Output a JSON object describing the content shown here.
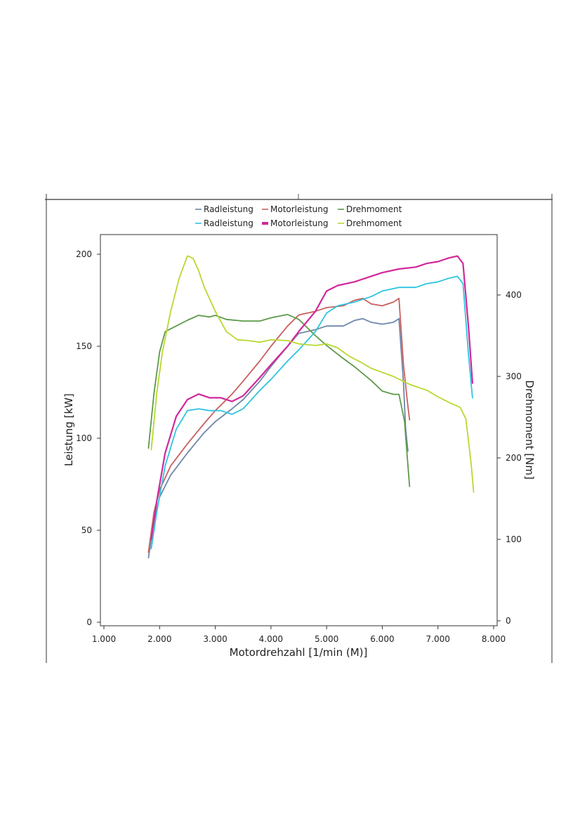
{
  "chart_data": {
    "type": "line",
    "xlabel": "Motordrehzahl [1/min (M)]",
    "ylabel_left": "Leistung [kW]",
    "ylabel_right": "Drehmoment [Nm]",
    "xlim": [
      1000,
      8000
    ],
    "ylim_left": [
      0,
      200
    ],
    "ylim_right": [
      0,
      460
    ],
    "x_ticks": [
      1000,
      2000,
      3000,
      4000,
      5000,
      6000,
      7000,
      8000
    ],
    "x_tick_labels": [
      "1.000",
      "2.000",
      "3.000",
      "4.000",
      "5.000",
      "6.000",
      "7.000",
      "8.000"
    ],
    "y_left_ticks": [
      0,
      50,
      100,
      150,
      200
    ],
    "y_left_tick_labels": [
      "0",
      "50",
      "100",
      "150",
      "200"
    ],
    "y_right_ticks": [
      0,
      100,
      200,
      300,
      400
    ],
    "y_right_tick_labels": [
      "0",
      "100",
      "200",
      "300",
      "400"
    ],
    "grid": false,
    "legend_position": "top-center",
    "series": [
      {
        "name": "Radleistung",
        "axis": "left",
        "color": "#6f87a8",
        "legend_row": 0,
        "legend_marker": "line",
        "points": [
          [
            1800,
            35
          ],
          [
            1900,
            55
          ],
          [
            2000,
            68
          ],
          [
            2200,
            80
          ],
          [
            2500,
            92
          ],
          [
            2800,
            103
          ],
          [
            3000,
            109
          ],
          [
            3300,
            116
          ],
          [
            3500,
            121
          ],
          [
            3800,
            131
          ],
          [
            4000,
            139
          ],
          [
            4300,
            150
          ],
          [
            4500,
            157
          ],
          [
            4800,
            159
          ],
          [
            5000,
            161
          ],
          [
            5300,
            161
          ],
          [
            5500,
            164
          ],
          [
            5650,
            165
          ],
          [
            5800,
            163
          ],
          [
            6000,
            162
          ],
          [
            6200,
            163
          ],
          [
            6300,
            165
          ],
          [
            6380,
            130
          ],
          [
            6420,
            105
          ],
          [
            6460,
            93
          ]
        ]
      },
      {
        "name": "Motorleistung",
        "axis": "left",
        "color": "#c9605f",
        "legend_row": 0,
        "legend_marker": "line",
        "points": [
          [
            1800,
            38
          ],
          [
            1900,
            60
          ],
          [
            2000,
            72
          ],
          [
            2200,
            85
          ],
          [
            2500,
            97
          ],
          [
            2800,
            108
          ],
          [
            3000,
            115
          ],
          [
            3300,
            124
          ],
          [
            3500,
            131
          ],
          [
            3800,
            142
          ],
          [
            4000,
            150
          ],
          [
            4300,
            161
          ],
          [
            4500,
            167
          ],
          [
            4800,
            169
          ],
          [
            5000,
            171
          ],
          [
            5300,
            172
          ],
          [
            5500,
            175
          ],
          [
            5650,
            176
          ],
          [
            5800,
            173
          ],
          [
            6000,
            172
          ],
          [
            6200,
            174
          ],
          [
            6300,
            176
          ],
          [
            6380,
            140
          ],
          [
            6450,
            120
          ],
          [
            6490,
            110
          ]
        ]
      },
      {
        "name": "Drehmoment",
        "axis": "right",
        "color": "#5d9a4a",
        "legend_row": 0,
        "legend_marker": "line",
        "points": [
          [
            1800,
            212
          ],
          [
            1900,
            280
          ],
          [
            2000,
            330
          ],
          [
            2100,
            355
          ],
          [
            2300,
            362
          ],
          [
            2500,
            369
          ],
          [
            2700,
            375
          ],
          [
            2900,
            373
          ],
          [
            3000,
            375
          ],
          [
            3200,
            370
          ],
          [
            3500,
            368
          ],
          [
            3800,
            368
          ],
          [
            4000,
            372
          ],
          [
            4300,
            376
          ],
          [
            4500,
            370
          ],
          [
            4800,
            350
          ],
          [
            5000,
            338
          ],
          [
            5300,
            322
          ],
          [
            5500,
            312
          ],
          [
            5800,
            295
          ],
          [
            6000,
            282
          ],
          [
            6200,
            278
          ],
          [
            6300,
            278
          ],
          [
            6400,
            245
          ],
          [
            6450,
            200
          ],
          [
            6490,
            165
          ]
        ]
      },
      {
        "name": "Radleistung",
        "axis": "left",
        "color": "#2ec4e0",
        "legend_row": 1,
        "legend_marker": "line",
        "points": [
          [
            1850,
            40
          ],
          [
            1950,
            60
          ],
          [
            2100,
            85
          ],
          [
            2300,
            105
          ],
          [
            2500,
            115
          ],
          [
            2700,
            116
          ],
          [
            2900,
            115
          ],
          [
            3100,
            115
          ],
          [
            3300,
            113
          ],
          [
            3500,
            116
          ],
          [
            3800,
            126
          ],
          [
            4000,
            132
          ],
          [
            4300,
            142
          ],
          [
            4500,
            148
          ],
          [
            4800,
            158
          ],
          [
            5000,
            168
          ],
          [
            5200,
            172
          ],
          [
            5500,
            174
          ],
          [
            5800,
            177
          ],
          [
            6000,
            180
          ],
          [
            6300,
            182
          ],
          [
            6600,
            182
          ],
          [
            6800,
            184
          ],
          [
            7000,
            185
          ],
          [
            7200,
            187
          ],
          [
            7350,
            188
          ],
          [
            7450,
            184
          ],
          [
            7550,
            145
          ],
          [
            7620,
            122
          ]
        ]
      },
      {
        "name": "Motorleistung",
        "axis": "left",
        "color": "#d2279b",
        "legend_row": 1,
        "legend_marker": "filled",
        "points": [
          [
            1850,
            45
          ],
          [
            1950,
            66
          ],
          [
            2100,
            92
          ],
          [
            2300,
            112
          ],
          [
            2500,
            121
          ],
          [
            2700,
            124
          ],
          [
            2900,
            122
          ],
          [
            3100,
            122
          ],
          [
            3300,
            120
          ],
          [
            3500,
            123
          ],
          [
            3800,
            133
          ],
          [
            4000,
            140
          ],
          [
            4300,
            150
          ],
          [
            4500,
            158
          ],
          [
            4800,
            169
          ],
          [
            5000,
            180
          ],
          [
            5200,
            183
          ],
          [
            5500,
            185
          ],
          [
            5800,
            188
          ],
          [
            6000,
            190
          ],
          [
            6300,
            192
          ],
          [
            6600,
            193
          ],
          [
            6800,
            195
          ],
          [
            7000,
            196
          ],
          [
            7200,
            198
          ],
          [
            7350,
            199
          ],
          [
            7450,
            195
          ],
          [
            7550,
            160
          ],
          [
            7620,
            130
          ]
        ]
      },
      {
        "name": "Drehmoment",
        "axis": "right",
        "color": "#b7d930",
        "legend_row": 1,
        "legend_marker": "line",
        "points": [
          [
            1850,
            210
          ],
          [
            1950,
            280
          ],
          [
            2050,
            330
          ],
          [
            2200,
            380
          ],
          [
            2350,
            420
          ],
          [
            2500,
            448
          ],
          [
            2600,
            445
          ],
          [
            2700,
            430
          ],
          [
            2800,
            410
          ],
          [
            2900,
            395
          ],
          [
            3000,
            380
          ],
          [
            3200,
            355
          ],
          [
            3400,
            345
          ],
          [
            3600,
            344
          ],
          [
            3800,
            342
          ],
          [
            4000,
            345
          ],
          [
            4300,
            344
          ],
          [
            4500,
            340
          ],
          [
            4800,
            338
          ],
          [
            5000,
            340
          ],
          [
            5200,
            335
          ],
          [
            5400,
            325
          ],
          [
            5600,
            318
          ],
          [
            5800,
            310
          ],
          [
            6000,
            305
          ],
          [
            6200,
            300
          ],
          [
            6500,
            290
          ],
          [
            6800,
            283
          ],
          [
            7000,
            275
          ],
          [
            7200,
            268
          ],
          [
            7400,
            262
          ],
          [
            7500,
            248
          ],
          [
            7550,
            220
          ],
          [
            7600,
            190
          ],
          [
            7640,
            158
          ]
        ]
      }
    ]
  }
}
